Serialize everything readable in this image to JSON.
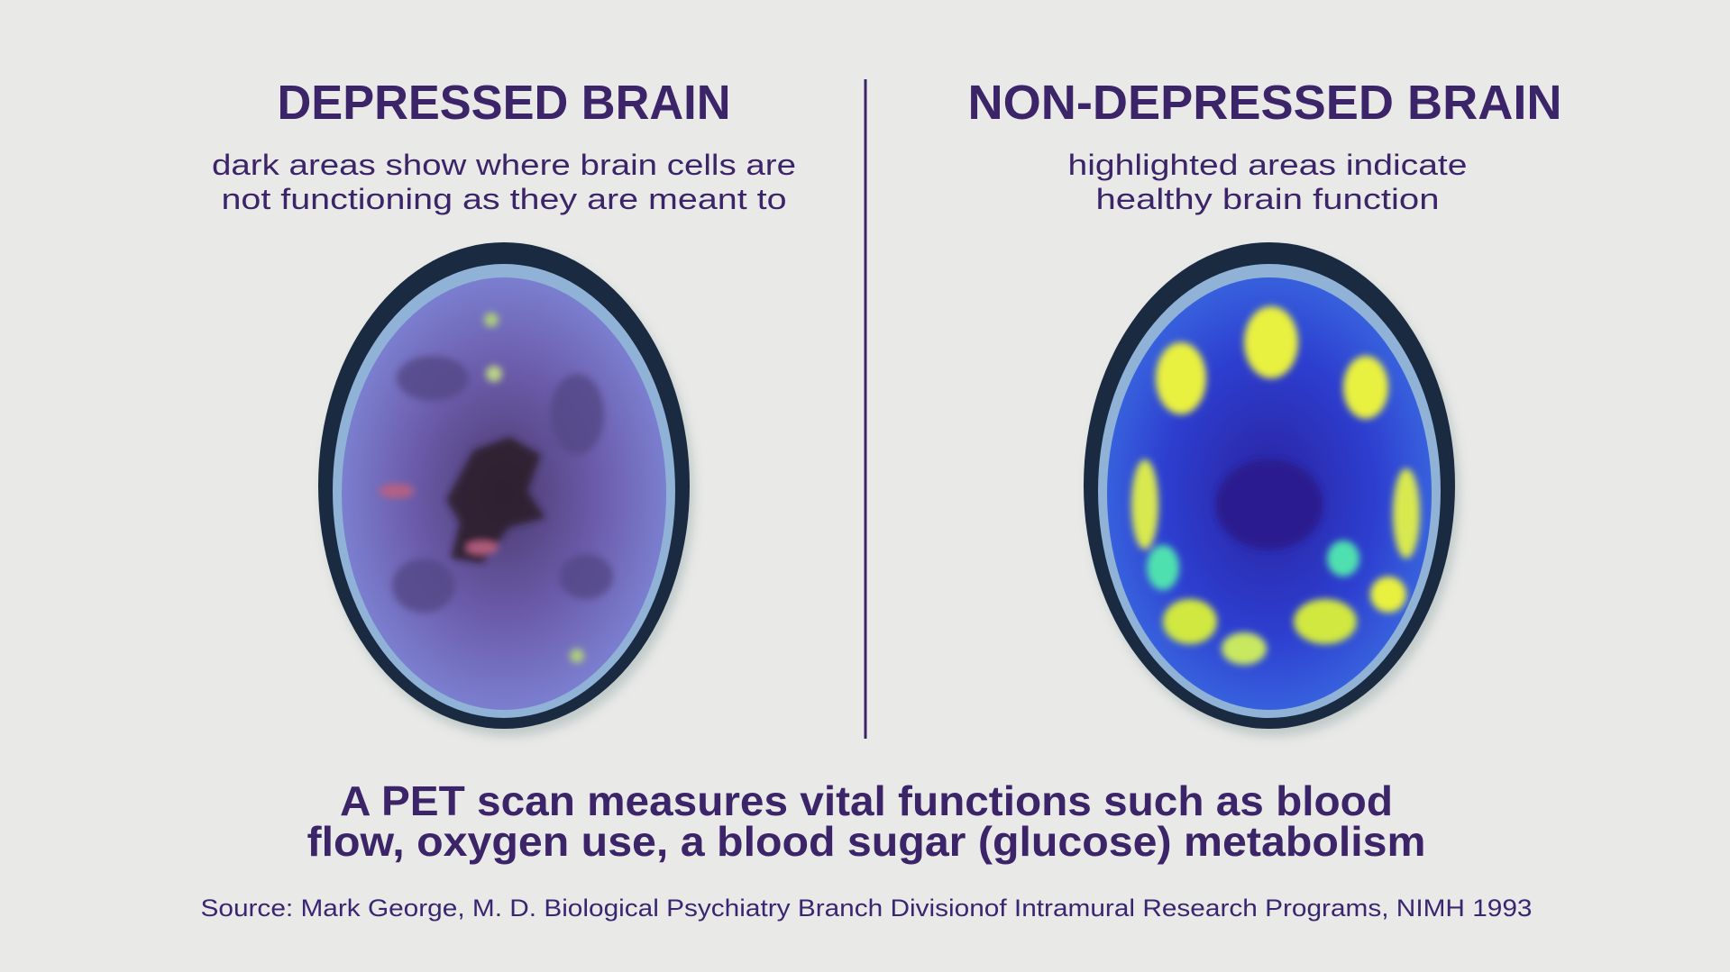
{
  "left": {
    "title": "DEPRESSED BRAIN",
    "subtitle": [
      "dark areas show where brain cells are",
      "not functioning as they are meant to"
    ]
  },
  "right": {
    "title": "NON-DEPRESSED BRAIN",
    "subtitle": [
      "highlighted areas indicate",
      "healthy brain function"
    ]
  },
  "caption": [
    "A PET scan measures vital functions such as blood",
    "flow, oxygen use, a blood sugar (glucose) metabolism"
  ],
  "source": "Source: Mark George, M. D. Biological Psychiatry Branch Divisionof Intramural Research Programs, NIMH 1993"
}
